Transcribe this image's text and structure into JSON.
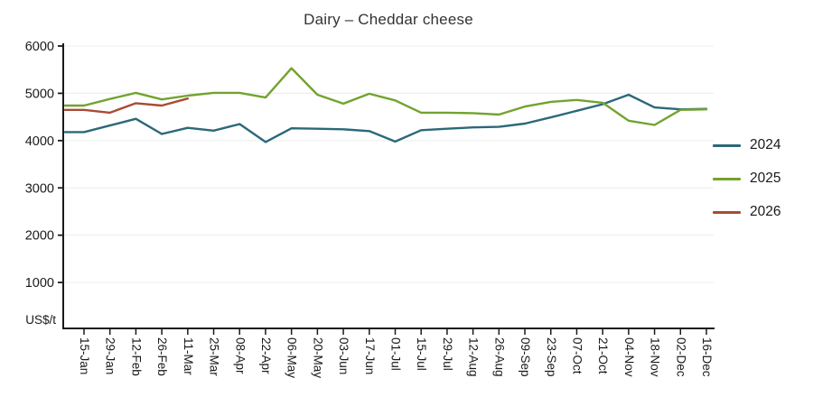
{
  "title": "Dairy – Cheddar cheese",
  "y_axis": {
    "unit_label": "US$/t",
    "tick_labels": [
      "6000",
      "5000",
      "4000",
      "3000",
      "2000",
      "1000"
    ]
  },
  "colors": {
    "series_2024": "#2b6879",
    "series_2025": "#72a32f",
    "series_2026": "#a94b35",
    "grid": "#ececec",
    "axis": "#1a1a1a",
    "title_text": "#333333"
  },
  "chart_data": {
    "type": "line",
    "title": "Dairy – Cheddar cheese",
    "xlabel": "",
    "ylabel": "US$/t",
    "ylim": [
      0,
      6000
    ],
    "y_ticks": [
      1000,
      2000,
      3000,
      4000,
      5000,
      6000
    ],
    "grid": "horizontal",
    "legend_position": "right-outside",
    "categories": [
      "15-Jan",
      "29-Jan",
      "12-Feb",
      "26-Feb",
      "11-Mar",
      "25-Mar",
      "08-Apr",
      "22-Apr",
      "06-May",
      "20-May",
      "03-Jun",
      "17-Jun",
      "01-Jul",
      "15-Jul",
      "29-Jul",
      "12-Aug",
      "26-Aug",
      "09-Sep",
      "23-Sep",
      "07-Oct",
      "21-Oct",
      "04-Nov",
      "18-Nov",
      "02-Dec",
      "16-Dec"
    ],
    "series": [
      {
        "name": "2024",
        "color": "#2b6879",
        "values": [
          4180,
          4320,
          4460,
          4140,
          4270,
          4210,
          4350,
          3970,
          4260,
          4250,
          4240,
          4200,
          3980,
          4220,
          4250,
          4280,
          4290,
          4360,
          4490,
          4630,
          4770,
          4970,
          4700,
          4660,
          4670
        ]
      },
      {
        "name": "2025",
        "color": "#72a32f",
        "values": [
          4740,
          4880,
          5010,
          4870,
          4950,
          5010,
          5010,
          4910,
          5530,
          4970,
          4780,
          4990,
          4850,
          4590,
          4590,
          4580,
          4550,
          4720,
          4820,
          4860,
          4800,
          4420,
          4330,
          4650,
          4660
        ]
      },
      {
        "name": "2026",
        "color": "#a94b35",
        "values": [
          4650,
          4590,
          4790,
          4740,
          4890
        ]
      }
    ]
  }
}
